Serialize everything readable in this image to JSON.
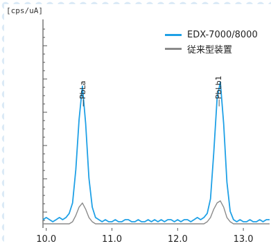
{
  "chart_data": {
    "type": "line",
    "unit_label": "[cps/uA]",
    "xlim": [
      9.95,
      13.4
    ],
    "ylim": [
      0,
      1
    ],
    "x_ticks": [
      "10.0",
      "11.0",
      "12.0",
      "13.0"
    ],
    "x_tick_values": [
      10.0,
      11.0,
      12.0,
      13.0
    ],
    "grid": false,
    "legend_position": "top-right",
    "annotations": [
      {
        "label": "PbLa",
        "x": 10.55
      },
      {
        "label": "PbLb1",
        "x": 12.62
      }
    ],
    "series": [
      {
        "name": "EDX-7000/8000",
        "color": "#1ea0e6",
        "x": [
          9.95,
          10.0,
          10.05,
          10.1,
          10.15,
          10.2,
          10.25,
          10.3,
          10.35,
          10.4,
          10.45,
          10.5,
          10.55,
          10.6,
          10.65,
          10.7,
          10.75,
          10.8,
          10.85,
          10.9,
          10.95,
          11.0,
          11.05,
          11.1,
          11.15,
          11.2,
          11.25,
          11.3,
          11.35,
          11.4,
          11.45,
          11.5,
          11.55,
          11.6,
          11.65,
          11.7,
          11.75,
          11.8,
          11.85,
          11.9,
          11.95,
          12.0,
          12.05,
          12.1,
          12.15,
          12.2,
          12.25,
          12.3,
          12.35,
          12.4,
          12.45,
          12.5,
          12.55,
          12.6,
          12.65,
          12.7,
          12.75,
          12.8,
          12.85,
          12.9,
          12.95,
          13.0,
          13.05,
          13.1,
          13.15,
          13.2,
          13.25,
          13.3,
          13.35,
          13.4
        ],
        "y": [
          0.04,
          0.05,
          0.04,
          0.03,
          0.04,
          0.05,
          0.04,
          0.05,
          0.07,
          0.12,
          0.28,
          0.52,
          0.68,
          0.5,
          0.24,
          0.1,
          0.05,
          0.04,
          0.03,
          0.04,
          0.03,
          0.03,
          0.04,
          0.03,
          0.03,
          0.04,
          0.04,
          0.03,
          0.03,
          0.04,
          0.03,
          0.03,
          0.04,
          0.03,
          0.04,
          0.03,
          0.04,
          0.03,
          0.04,
          0.04,
          0.03,
          0.04,
          0.03,
          0.04,
          0.04,
          0.03,
          0.04,
          0.05,
          0.04,
          0.05,
          0.07,
          0.14,
          0.36,
          0.62,
          0.7,
          0.5,
          0.22,
          0.08,
          0.04,
          0.03,
          0.04,
          0.03,
          0.03,
          0.04,
          0.03,
          0.03,
          0.04,
          0.03,
          0.04,
          0.04
        ]
      },
      {
        "name": "従来型装置",
        "color": "#8a8a8a",
        "x": [
          9.95,
          10.0,
          10.05,
          10.1,
          10.15,
          10.2,
          10.25,
          10.3,
          10.35,
          10.4,
          10.45,
          10.5,
          10.55,
          10.6,
          10.65,
          10.7,
          10.75,
          10.8,
          10.85,
          10.9,
          10.95,
          11.0,
          11.05,
          11.1,
          11.15,
          11.2,
          11.25,
          11.3,
          11.35,
          11.4,
          11.45,
          11.5,
          11.55,
          11.6,
          11.65,
          11.7,
          11.75,
          11.8,
          11.85,
          11.9,
          11.95,
          12.0,
          12.05,
          12.1,
          12.15,
          12.2,
          12.25,
          12.3,
          12.35,
          12.4,
          12.45,
          12.5,
          12.55,
          12.6,
          12.65,
          12.7,
          12.75,
          12.8,
          12.85,
          12.9,
          12.95,
          13.0,
          13.05,
          13.1,
          13.15,
          13.2,
          13.25,
          13.3,
          13.35,
          13.4
        ],
        "y": [
          0.02,
          0.02,
          0.02,
          0.02,
          0.02,
          0.02,
          0.02,
          0.02,
          0.02,
          0.03,
          0.06,
          0.1,
          0.12,
          0.09,
          0.05,
          0.03,
          0.02,
          0.02,
          0.02,
          0.02,
          0.02,
          0.02,
          0.02,
          0.02,
          0.02,
          0.02,
          0.02,
          0.02,
          0.02,
          0.02,
          0.02,
          0.02,
          0.02,
          0.02,
          0.02,
          0.02,
          0.02,
          0.02,
          0.02,
          0.02,
          0.02,
          0.02,
          0.02,
          0.02,
          0.02,
          0.02,
          0.02,
          0.02,
          0.02,
          0.02,
          0.03,
          0.05,
          0.09,
          0.12,
          0.13,
          0.1,
          0.05,
          0.03,
          0.02,
          0.02,
          0.02,
          0.02,
          0.02,
          0.02,
          0.02,
          0.02,
          0.02,
          0.02,
          0.02,
          0.02
        ]
      }
    ]
  }
}
